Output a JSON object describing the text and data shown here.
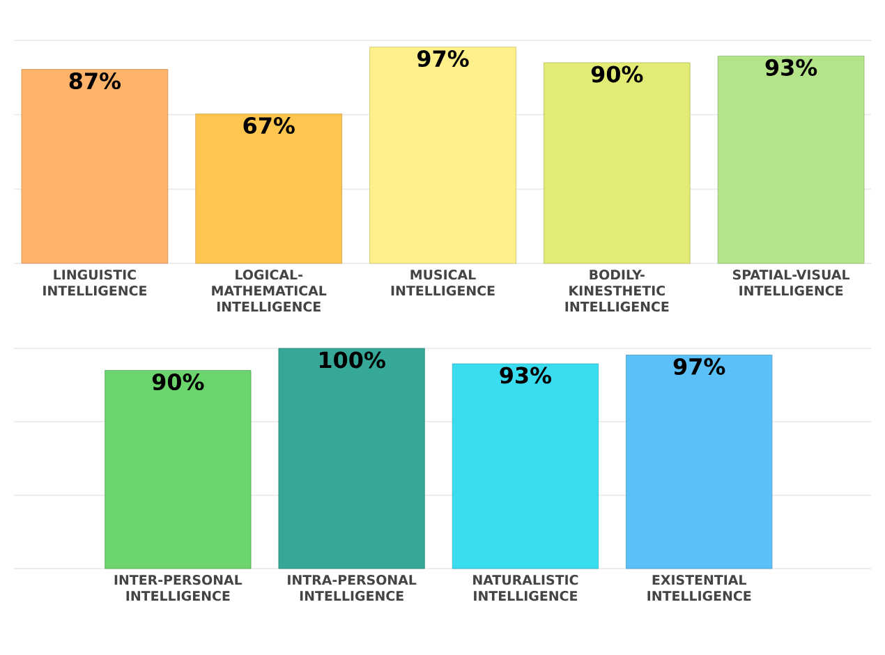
{
  "chart_data": [
    {
      "type": "bar",
      "categories": [
        "LINGUISTIC INTELLIGENCE",
        "LOGICAL-MATHEMATICAL INTELLIGENCE",
        "MUSICAL INTELLIGENCE",
        "BODILY-KINESTHETIC INTELLIGENCE",
        "SPATIAL-VISUAL INTELLIGENCE"
      ],
      "values": [
        87,
        67,
        97,
        90,
        93
      ],
      "colors": [
        "#ffb26a",
        "#ffc64f",
        "#fff08a",
        "#e2ec74",
        "#b4e48a"
      ],
      "value_labels": [
        "87%",
        "67%",
        "97%",
        "90%",
        "93%"
      ],
      "ylim": [
        0,
        100
      ],
      "yticks": [
        {
          "value": 0,
          "label": null
        },
        {
          "value": 33.3,
          "label": null
        },
        {
          "value": 66.7,
          "label": null
        },
        {
          "value": 100,
          "label": null
        }
      ],
      "grid": "y",
      "tick_labels": "x"
    },
    {
      "type": "bar",
      "categories": [
        "INTER-PERSONAL INTELLIGENCE",
        "INTRA-PERSONAL INTELLIGENCE",
        "NATURALISTIC INTELLIGENCE",
        "EXISTENTIAL INTELLIGENCE"
      ],
      "values": [
        90,
        100,
        93,
        97
      ],
      "colors": [
        "#6cd46c",
        "#36a898",
        "#3adcf0",
        "#5cc0f8"
      ],
      "value_labels": [
        "90%",
        "100%",
        "93%",
        "97%"
      ],
      "ylim": [
        0,
        100
      ],
      "yticks": [
        {
          "value": 0,
          "label": null
        },
        {
          "value": 33.3,
          "label": null
        },
        {
          "value": 66.7,
          "label": null
        },
        {
          "value": 100,
          "label": null
        }
      ],
      "grid": "y",
      "tick_labels": "x"
    }
  ]
}
